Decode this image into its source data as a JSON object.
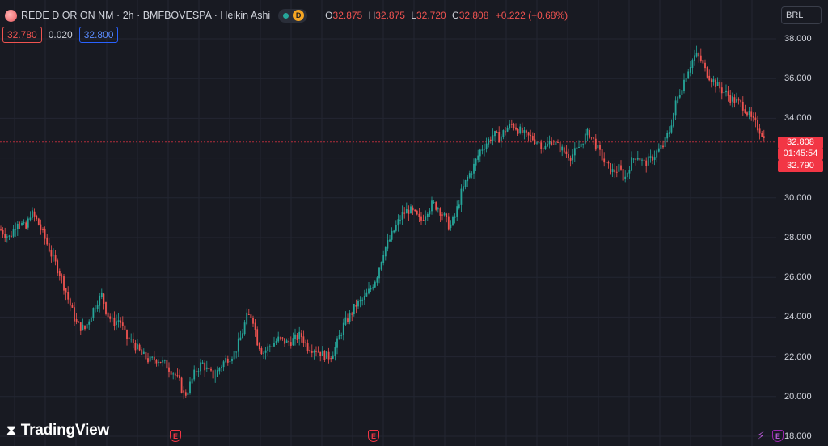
{
  "header": {
    "symbol_title": "REDE D OR ON NM · 2h · BMFBOVESPA · Heikin Ashi",
    "status_letter": "D",
    "ohlc": {
      "o_label": "O",
      "o_value": "32.875",
      "h_label": "H",
      "h_value": "32.875",
      "l_label": "L",
      "l_value": "32.720",
      "c_label": "C",
      "c_value": "32.808",
      "change": "+0.222 (+0.68%)"
    },
    "bid": "32.780",
    "spread": "0.020",
    "ask": "32.800",
    "currency": "BRL"
  },
  "price_tags": {
    "last": "32.808",
    "countdown": "01:45:54",
    "bid": "32.790"
  },
  "brand": {
    "logo_text": "TradingView"
  },
  "events": {
    "earnings_label": "E"
  },
  "colors": {
    "background": "#181a22",
    "up": "#26a69a",
    "down": "#ef5350",
    "grid": "#232632",
    "last_price": "#f23645"
  },
  "chart_data": {
    "type": "candlestick",
    "style": "heikin-ashi",
    "y_ticks": [
      "38.000",
      "36.000",
      "34.000",
      "32.000",
      "30.000",
      "28.000",
      "26.000",
      "24.000",
      "22.000",
      "20.000",
      "18.000"
    ],
    "ylim": [
      18,
      38.6
    ],
    "last_price": 32.808,
    "grid": true,
    "price_path": [
      [
        0,
        28.4
      ],
      [
        12,
        28.0
      ],
      [
        22,
        28.9
      ],
      [
        32,
        28.4
      ],
      [
        38,
        29.3
      ],
      [
        46,
        28.8
      ],
      [
        55,
        28.0
      ],
      [
        65,
        27.0
      ],
      [
        75,
        26.1
      ],
      [
        85,
        24.8
      ],
      [
        95,
        23.6
      ],
      [
        105,
        23.4
      ],
      [
        112,
        24.1
      ],
      [
        120,
        24.8
      ],
      [
        126,
        25.1
      ],
      [
        132,
        24.2
      ],
      [
        140,
        23.7
      ],
      [
        148,
        23.9
      ],
      [
        155,
        23.0
      ],
      [
        165,
        22.7
      ],
      [
        175,
        22.1
      ],
      [
        185,
        21.8
      ],
      [
        195,
        21.9
      ],
      [
        205,
        21.6
      ],
      [
        215,
        21.2
      ],
      [
        222,
        20.7
      ],
      [
        228,
        20.0
      ],
      [
        235,
        20.6
      ],
      [
        242,
        21.3
      ],
      [
        250,
        21.7
      ],
      [
        258,
        21.2
      ],
      [
        265,
        21.0
      ],
      [
        272,
        21.5
      ],
      [
        280,
        21.9
      ],
      [
        290,
        22.2
      ],
      [
        298,
        23.0
      ],
      [
        305,
        24.0
      ],
      [
        312,
        24.1
      ],
      [
        318,
        22.8
      ],
      [
        325,
        22.2
      ],
      [
        335,
        22.6
      ],
      [
        345,
        22.9
      ],
      [
        355,
        22.7
      ],
      [
        365,
        22.9
      ],
      [
        372,
        23.1
      ],
      [
        380,
        22.5
      ],
      [
        390,
        22.4
      ],
      [
        400,
        22.1
      ],
      [
        408,
        22.0
      ],
      [
        416,
        22.6
      ],
      [
        425,
        23.6
      ],
      [
        433,
        24.1
      ],
      [
        440,
        24.6
      ],
      [
        450,
        24.9
      ],
      [
        458,
        25.4
      ],
      [
        466,
        26.1
      ],
      [
        474,
        27.3
      ],
      [
        482,
        27.9
      ],
      [
        490,
        28.6
      ],
      [
        498,
        29.2
      ],
      [
        506,
        29.4
      ],
      [
        514,
        29.1
      ],
      [
        520,
        28.8
      ],
      [
        528,
        29.4
      ],
      [
        535,
        29.7
      ],
      [
        542,
        29.5
      ],
      [
        550,
        29.0
      ],
      [
        556,
        28.5
      ],
      [
        563,
        29.1
      ],
      [
        570,
        30.2
      ],
      [
        578,
        31.0
      ],
      [
        586,
        31.6
      ],
      [
        594,
        32.4
      ],
      [
        602,
        32.8
      ],
      [
        610,
        33.2
      ],
      [
        618,
        33.0
      ],
      [
        626,
        33.5
      ],
      [
        634,
        33.7
      ],
      [
        642,
        33.4
      ],
      [
        650,
        33.1
      ],
      [
        658,
        33.0
      ],
      [
        666,
        32.8
      ],
      [
        674,
        32.5
      ],
      [
        682,
        32.9
      ],
      [
        690,
        32.6
      ],
      [
        698,
        32.3
      ],
      [
        706,
        32.1
      ],
      [
        714,
        32.4
      ],
      [
        722,
        33.0
      ],
      [
        728,
        33.3
      ],
      [
        735,
        32.8
      ],
      [
        742,
        32.2
      ],
      [
        750,
        31.6
      ],
      [
        758,
        31.3
      ],
      [
        766,
        31.5
      ],
      [
        772,
        30.9
      ],
      [
        780,
        31.8
      ],
      [
        788,
        32.2
      ],
      [
        796,
        31.7
      ],
      [
        804,
        31.9
      ],
      [
        812,
        32.3
      ],
      [
        820,
        32.6
      ],
      [
        828,
        33.4
      ],
      [
        836,
        34.8
      ],
      [
        844,
        35.7
      ],
      [
        852,
        36.6
      ],
      [
        860,
        37.2
      ],
      [
        866,
        37.0
      ],
      [
        872,
        36.4
      ],
      [
        880,
        36.0
      ],
      [
        888,
        35.6
      ],
      [
        896,
        35.3
      ],
      [
        904,
        35.0
      ],
      [
        912,
        34.8
      ],
      [
        920,
        34.6
      ],
      [
        928,
        34.0
      ],
      [
        936,
        33.6
      ],
      [
        942,
        33.3
      ],
      [
        946,
        32.8
      ]
    ],
    "earnings_events_x": [
      210,
      455,
      955
    ]
  }
}
